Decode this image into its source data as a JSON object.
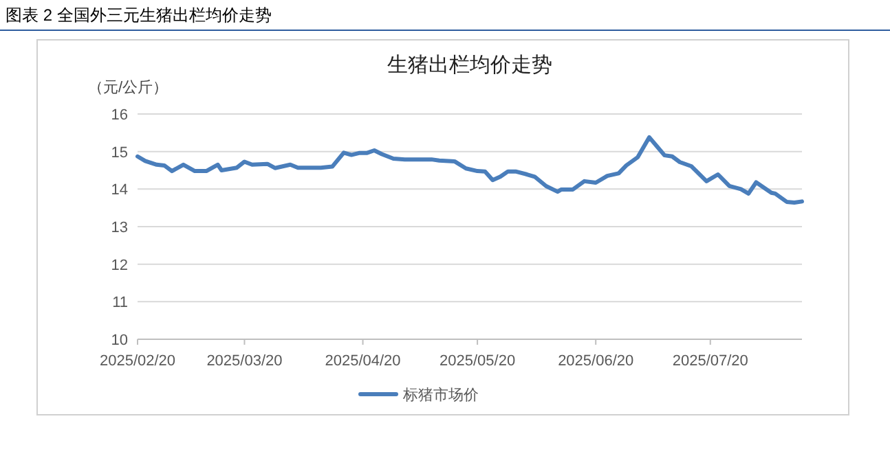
{
  "chart_data": {
    "type": "line",
    "title": "图表 2 全国外三元生猪出栏均价走势",
    "subtitle": "生猪出栏均价走势",
    "ylabel": "（元/公斤）",
    "xlim": [
      "2025-02-20",
      "2025-08-13"
    ],
    "xticks": [
      {
        "value": "2025-02-20",
        "label": "2025/02/20"
      },
      {
        "value": "2025-03-20",
        "label": "2025/03/20"
      },
      {
        "value": "2025-04-20",
        "label": "2025/04/20"
      },
      {
        "value": "2025-05-20",
        "label": "2025/05/20"
      },
      {
        "value": "2025-06-20",
        "label": "2025/06/20"
      },
      {
        "value": "2025-07-20",
        "label": "2025/07/20"
      }
    ],
    "ylim": [
      10,
      16
    ],
    "yticks": [
      10,
      11,
      12,
      13,
      14,
      15,
      16
    ],
    "grid": "y",
    "legend": "bottom",
    "marker": "none",
    "line_style": "solid",
    "series": [
      {
        "name": "标猪市场价",
        "color": "#4a7ebb",
        "x": [
          "2025-02-20",
          "2025-02-22",
          "2025-02-25",
          "2025-02-27",
          "2025-03-01",
          "2025-03-04",
          "2025-03-07",
          "2025-03-10",
          "2025-03-13",
          "2025-03-14",
          "2025-03-18",
          "2025-03-20",
          "2025-03-22",
          "2025-03-26",
          "2025-03-28",
          "2025-04-01",
          "2025-04-03",
          "2025-04-09",
          "2025-04-12",
          "2025-04-15",
          "2025-04-17",
          "2025-04-19",
          "2025-04-21",
          "2025-04-23",
          "2025-04-25",
          "2025-04-28",
          "2025-05-01",
          "2025-05-08",
          "2025-05-10",
          "2025-05-14",
          "2025-05-17",
          "2025-05-20",
          "2025-05-22",
          "2025-05-24",
          "2025-05-26",
          "2025-05-28",
          "2025-05-30",
          "2025-06-02",
          "2025-06-04",
          "2025-06-07",
          "2025-06-10",
          "2025-06-11",
          "2025-06-14",
          "2025-06-17",
          "2025-06-20",
          "2025-06-23",
          "2025-06-26",
          "2025-06-28",
          "2025-07-01",
          "2025-07-04",
          "2025-07-06",
          "2025-07-08",
          "2025-07-10",
          "2025-07-12",
          "2025-07-15",
          "2025-07-16",
          "2025-07-19",
          "2025-07-22",
          "2025-07-25",
          "2025-07-28",
          "2025-07-30",
          "2025-08-01",
          "2025-08-05",
          "2025-08-06",
          "2025-08-09",
          "2025-08-11",
          "2025-08-13"
        ],
        "values": [
          14.87,
          14.75,
          14.65,
          14.63,
          14.48,
          14.65,
          14.48,
          14.48,
          14.65,
          14.5,
          14.57,
          14.73,
          14.65,
          14.67,
          14.56,
          14.65,
          14.57,
          14.57,
          14.6,
          14.97,
          14.91,
          14.96,
          14.96,
          15.03,
          14.93,
          14.81,
          14.79,
          14.79,
          14.76,
          14.74,
          14.55,
          14.48,
          14.47,
          14.24,
          14.33,
          14.47,
          14.47,
          14.39,
          14.33,
          14.08,
          13.93,
          13.99,
          13.99,
          14.21,
          14.17,
          14.35,
          14.42,
          14.63,
          14.85,
          15.38,
          15.14,
          14.9,
          14.87,
          14.72,
          14.61,
          14.51,
          14.21,
          14.39,
          14.08,
          14.0,
          13.88,
          14.18,
          13.9,
          13.88,
          13.66,
          13.64,
          13.67
        ]
      }
    ]
  }
}
